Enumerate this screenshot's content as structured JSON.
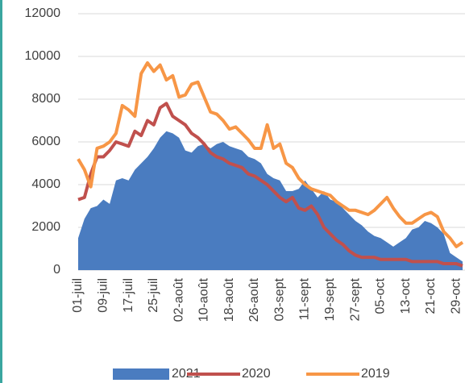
{
  "chart_data": {
    "type": "line",
    "categories": [
      "01-juil",
      null,
      null,
      null,
      "09-juil",
      null,
      null,
      null,
      "17-juil",
      null,
      null,
      null,
      "25-juil",
      null,
      null,
      null,
      "02-août",
      null,
      null,
      null,
      "10-août",
      null,
      null,
      null,
      "18-août",
      null,
      null,
      null,
      "26-août",
      null,
      null,
      null,
      "03-sept",
      null,
      null,
      null,
      "11-sept",
      null,
      null,
      null,
      "19-sept",
      null,
      null,
      null,
      "27-sept",
      null,
      null,
      null,
      "05-oct",
      null,
      null,
      null,
      "13-oct",
      null,
      null,
      null,
      "21-oct",
      null,
      null,
      null,
      "29-oct",
      null
    ],
    "series": [
      {
        "name": "2021",
        "color": "#4a7cc0",
        "style": "area",
        "values": [
          1500,
          2400,
          2900,
          3000,
          3300,
          3100,
          4200,
          4300,
          4200,
          4700,
          5000,
          5300,
          5700,
          6200,
          6500,
          6400,
          6200,
          5600,
          5500,
          5800,
          5900,
          5700,
          5900,
          6000,
          5800,
          5700,
          5600,
          5300,
          5200,
          5000,
          4500,
          4300,
          4200,
          3700,
          3700,
          3800,
          4200,
          3800,
          3400,
          3700,
          3300,
          3200,
          2900,
          2600,
          2300,
          2100,
          1800,
          1600,
          1500,
          1300,
          1100,
          1300,
          1500,
          1900,
          2000,
          2300,
          2200,
          2000,
          1700,
          800,
          600,
          400
        ]
      },
      {
        "name": "2020",
        "color": "#c0504d",
        "style": "line",
        "values": [
          3300,
          3400,
          4500,
          5300,
          5300,
          5600,
          6000,
          5900,
          5800,
          6500,
          6300,
          7000,
          6800,
          7600,
          7800,
          7200,
          7000,
          6800,
          6400,
          6200,
          5900,
          5500,
          5300,
          5200,
          5000,
          4900,
          4800,
          4500,
          4400,
          4200,
          4000,
          3700,
          3400,
          3200,
          3400,
          2900,
          2800,
          3000,
          2600,
          2000,
          1700,
          1400,
          1200,
          900,
          700,
          600,
          600,
          600,
          500,
          500,
          500,
          500,
          500,
          400,
          400,
          400,
          400,
          400,
          300,
          300,
          300,
          200
        ]
      },
      {
        "name": "2019",
        "color": "#f79646",
        "style": "line",
        "values": [
          5200,
          4700,
          3900,
          5700,
          5800,
          6000,
          6400,
          7700,
          7500,
          7200,
          9200,
          9700,
          9300,
          9600,
          8900,
          9100,
          8100,
          8200,
          8700,
          8800,
          8100,
          7400,
          7300,
          7000,
          6600,
          6700,
          6400,
          6100,
          5700,
          5700,
          6800,
          5700,
          5900,
          5000,
          4800,
          4300,
          4000,
          3800,
          3700,
          3600,
          3500,
          3200,
          3000,
          2800,
          2800,
          2700,
          2600,
          2800,
          3100,
          3400,
          2900,
          2500,
          2200,
          2200,
          2400,
          2600,
          2700,
          2500,
          1800,
          1500,
          1100,
          1300
        ]
      }
    ],
    "ylim": [
      0,
      12000
    ],
    "yticks": [
      0,
      2000,
      4000,
      6000,
      8000,
      10000,
      12000
    ],
    "grid": true,
    "legend": "bottom"
  }
}
